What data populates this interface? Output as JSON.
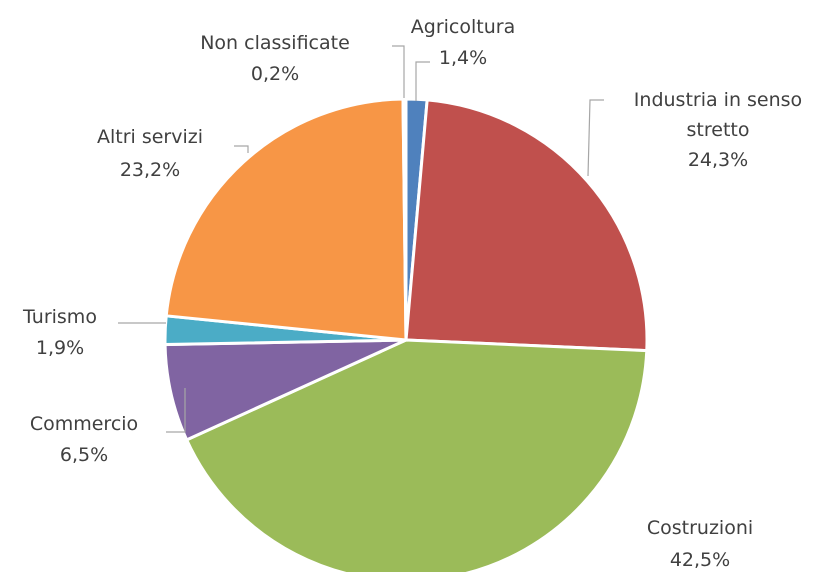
{
  "chart_data": {
    "type": "pie",
    "categories": [
      "Agricoltura",
      "Industria in senso stretto",
      "Costruzioni",
      "Commercio",
      "Turismo",
      "Altri servizi",
      "Non classificate"
    ],
    "values": [
      1.4,
      24.3,
      42.5,
      6.5,
      1.9,
      23.2,
      0.2
    ],
    "value_labels": [
      "1,4%",
      "24,3%",
      "42,5%",
      "6,5%",
      "1,9%",
      "23,2%",
      "0,2%"
    ],
    "colors": [
      "#4f81bd",
      "#c0504d",
      "#9bbb59",
      "#8064a2",
      "#4bacc6",
      "#f79646",
      "#2c4d75"
    ]
  }
}
